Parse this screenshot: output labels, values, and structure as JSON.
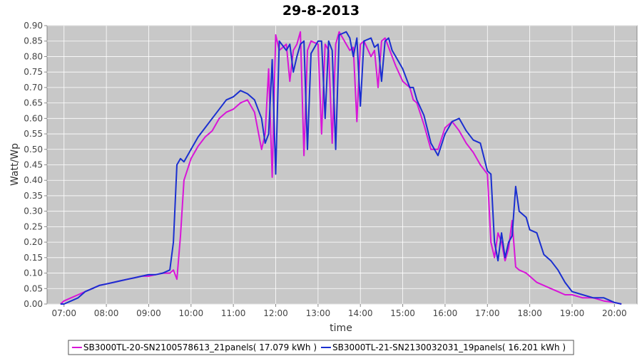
{
  "chart_data": {
    "type": "line",
    "title": "29-8-2013",
    "x_label": "time",
    "y_label": "Watt/Wp",
    "xlim": [
      "06:36",
      "20:32"
    ],
    "xticks": [
      "07:00",
      "08:00",
      "09:00",
      "10:00",
      "11:00",
      "12:00",
      "13:00",
      "14:00",
      "15:00",
      "16:00",
      "17:00",
      "18:00",
      "19:00",
      "20:00"
    ],
    "ylim": [
      0,
      0.9
    ],
    "yticks": [
      {
        "value": 0,
        "label": "0.00"
      },
      0.05,
      {
        "value": 0.1,
        "label": "0.10"
      },
      0.15,
      {
        "value": 0.2,
        "label": "0.20"
      },
      0.25,
      {
        "value": 0.3,
        "label": "0.30"
      },
      0.35,
      {
        "value": 0.4,
        "label": "0.40"
      },
      0.45,
      {
        "value": 0.5,
        "label": "0.50"
      },
      0.55,
      {
        "value": 0.6,
        "label": "0.60"
      },
      0.65,
      {
        "value": 0.7,
        "label": "0.70"
      },
      0.75,
      {
        "value": 0.8,
        "label": "0.80"
      },
      0.85,
      {
        "value": 0.9,
        "label": "0.90"
      }
    ],
    "grid": true,
    "legend": "bottom",
    "x": [
      "06:55",
      "07:00",
      "07:10",
      "07:20",
      "07:30",
      "07:40",
      "07:50",
      "08:00",
      "08:10",
      "08:20",
      "08:30",
      "08:40",
      "08:50",
      "09:00",
      "09:10",
      "09:20",
      "09:30",
      "09:35",
      "09:40",
      "09:45",
      "09:50",
      "10:00",
      "10:10",
      "10:20",
      "10:30",
      "10:40",
      "10:50",
      "11:00",
      "11:10",
      "11:20",
      "11:30",
      "11:40",
      "11:45",
      "11:50",
      "11:55",
      "12:00",
      "12:05",
      "12:15",
      "12:20",
      "12:25",
      "12:30",
      "12:35",
      "12:40",
      "12:45",
      "12:50",
      "13:00",
      "13:05",
      "13:10",
      "13:15",
      "13:20",
      "13:25",
      "13:30",
      "13:40",
      "13:45",
      "13:50",
      "13:55",
      "14:00",
      "14:05",
      "14:15",
      "14:20",
      "14:25",
      "14:30",
      "14:35",
      "14:40",
      "14:45",
      "14:50",
      "15:00",
      "15:10",
      "15:15",
      "15:20",
      "15:30",
      "15:40",
      "15:50",
      "16:00",
      "16:10",
      "16:20",
      "16:30",
      "16:40",
      "16:50",
      "17:00",
      "17:05",
      "17:10",
      "17:15",
      "17:20",
      "17:25",
      "17:30",
      "17:35",
      "17:40",
      "17:45",
      "17:55",
      "18:00",
      "18:10",
      "18:20",
      "18:30",
      "18:40",
      "18:50",
      "19:00",
      "19:15",
      "19:30",
      "19:45",
      "20:00",
      "20:10"
    ],
    "series": [
      {
        "name": "SB3000TL-20-SN2100578613_21panels( 17.079 kWh )",
        "color": "#d815d8",
        "values": [
          0,
          0.01,
          0.02,
          0.03,
          0.04,
          0.05,
          0.06,
          0.065,
          0.07,
          0.075,
          0.08,
          0.085,
          0.09,
          0.09,
          0.095,
          0.1,
          0.1,
          0.11,
          0.08,
          0.22,
          0.4,
          0.47,
          0.51,
          0.54,
          0.56,
          0.6,
          0.62,
          0.63,
          0.65,
          0.66,
          0.62,
          0.5,
          0.55,
          0.76,
          0.41,
          0.87,
          0.82,
          0.84,
          0.72,
          0.82,
          0.84,
          0.88,
          0.48,
          0.82,
          0.85,
          0.84,
          0.55,
          0.84,
          0.82,
          0.52,
          0.84,
          0.88,
          0.84,
          0.82,
          0.83,
          0.59,
          0.84,
          0.85,
          0.8,
          0.82,
          0.7,
          0.85,
          0.86,
          0.83,
          0.8,
          0.77,
          0.72,
          0.7,
          0.66,
          0.65,
          0.58,
          0.5,
          0.5,
          0.57,
          0.59,
          0.56,
          0.52,
          0.49,
          0.45,
          0.42,
          0.2,
          0.15,
          0.23,
          0.2,
          0.14,
          0.18,
          0.27,
          0.12,
          0.11,
          0.1,
          0.09,
          0.07,
          0.06,
          0.05,
          0.04,
          0.03,
          0.03,
          0.02,
          0.02,
          0.01,
          0.005,
          0
        ]
      },
      {
        "name": "SB3000TL-21-SN2130032031_19panels( 16.201 kWh )",
        "color": "#1a2fd0",
        "values": [
          0,
          0,
          0.01,
          0.02,
          0.04,
          0.05,
          0.06,
          0.065,
          0.07,
          0.075,
          0.08,
          0.085,
          0.09,
          0.095,
          0.095,
          0.1,
          0.11,
          0.2,
          0.45,
          0.47,
          0.46,
          0.5,
          0.54,
          0.57,
          0.6,
          0.63,
          0.66,
          0.67,
          0.69,
          0.68,
          0.66,
          0.6,
          0.52,
          0.55,
          0.79,
          0.42,
          0.85,
          0.82,
          0.84,
          0.75,
          0.8,
          0.84,
          0.85,
          0.5,
          0.81,
          0.85,
          0.85,
          0.6,
          0.85,
          0.82,
          0.5,
          0.87,
          0.88,
          0.86,
          0.8,
          0.86,
          0.64,
          0.85,
          0.86,
          0.83,
          0.84,
          0.72,
          0.85,
          0.86,
          0.82,
          0.8,
          0.76,
          0.7,
          0.7,
          0.66,
          0.61,
          0.52,
          0.48,
          0.55,
          0.59,
          0.6,
          0.56,
          0.53,
          0.52,
          0.43,
          0.42,
          0.2,
          0.14,
          0.23,
          0.15,
          0.2,
          0.22,
          0.38,
          0.3,
          0.28,
          0.24,
          0.23,
          0.16,
          0.14,
          0.11,
          0.07,
          0.04,
          0.03,
          0.02,
          0.02,
          0.005,
          0
        ]
      }
    ]
  }
}
